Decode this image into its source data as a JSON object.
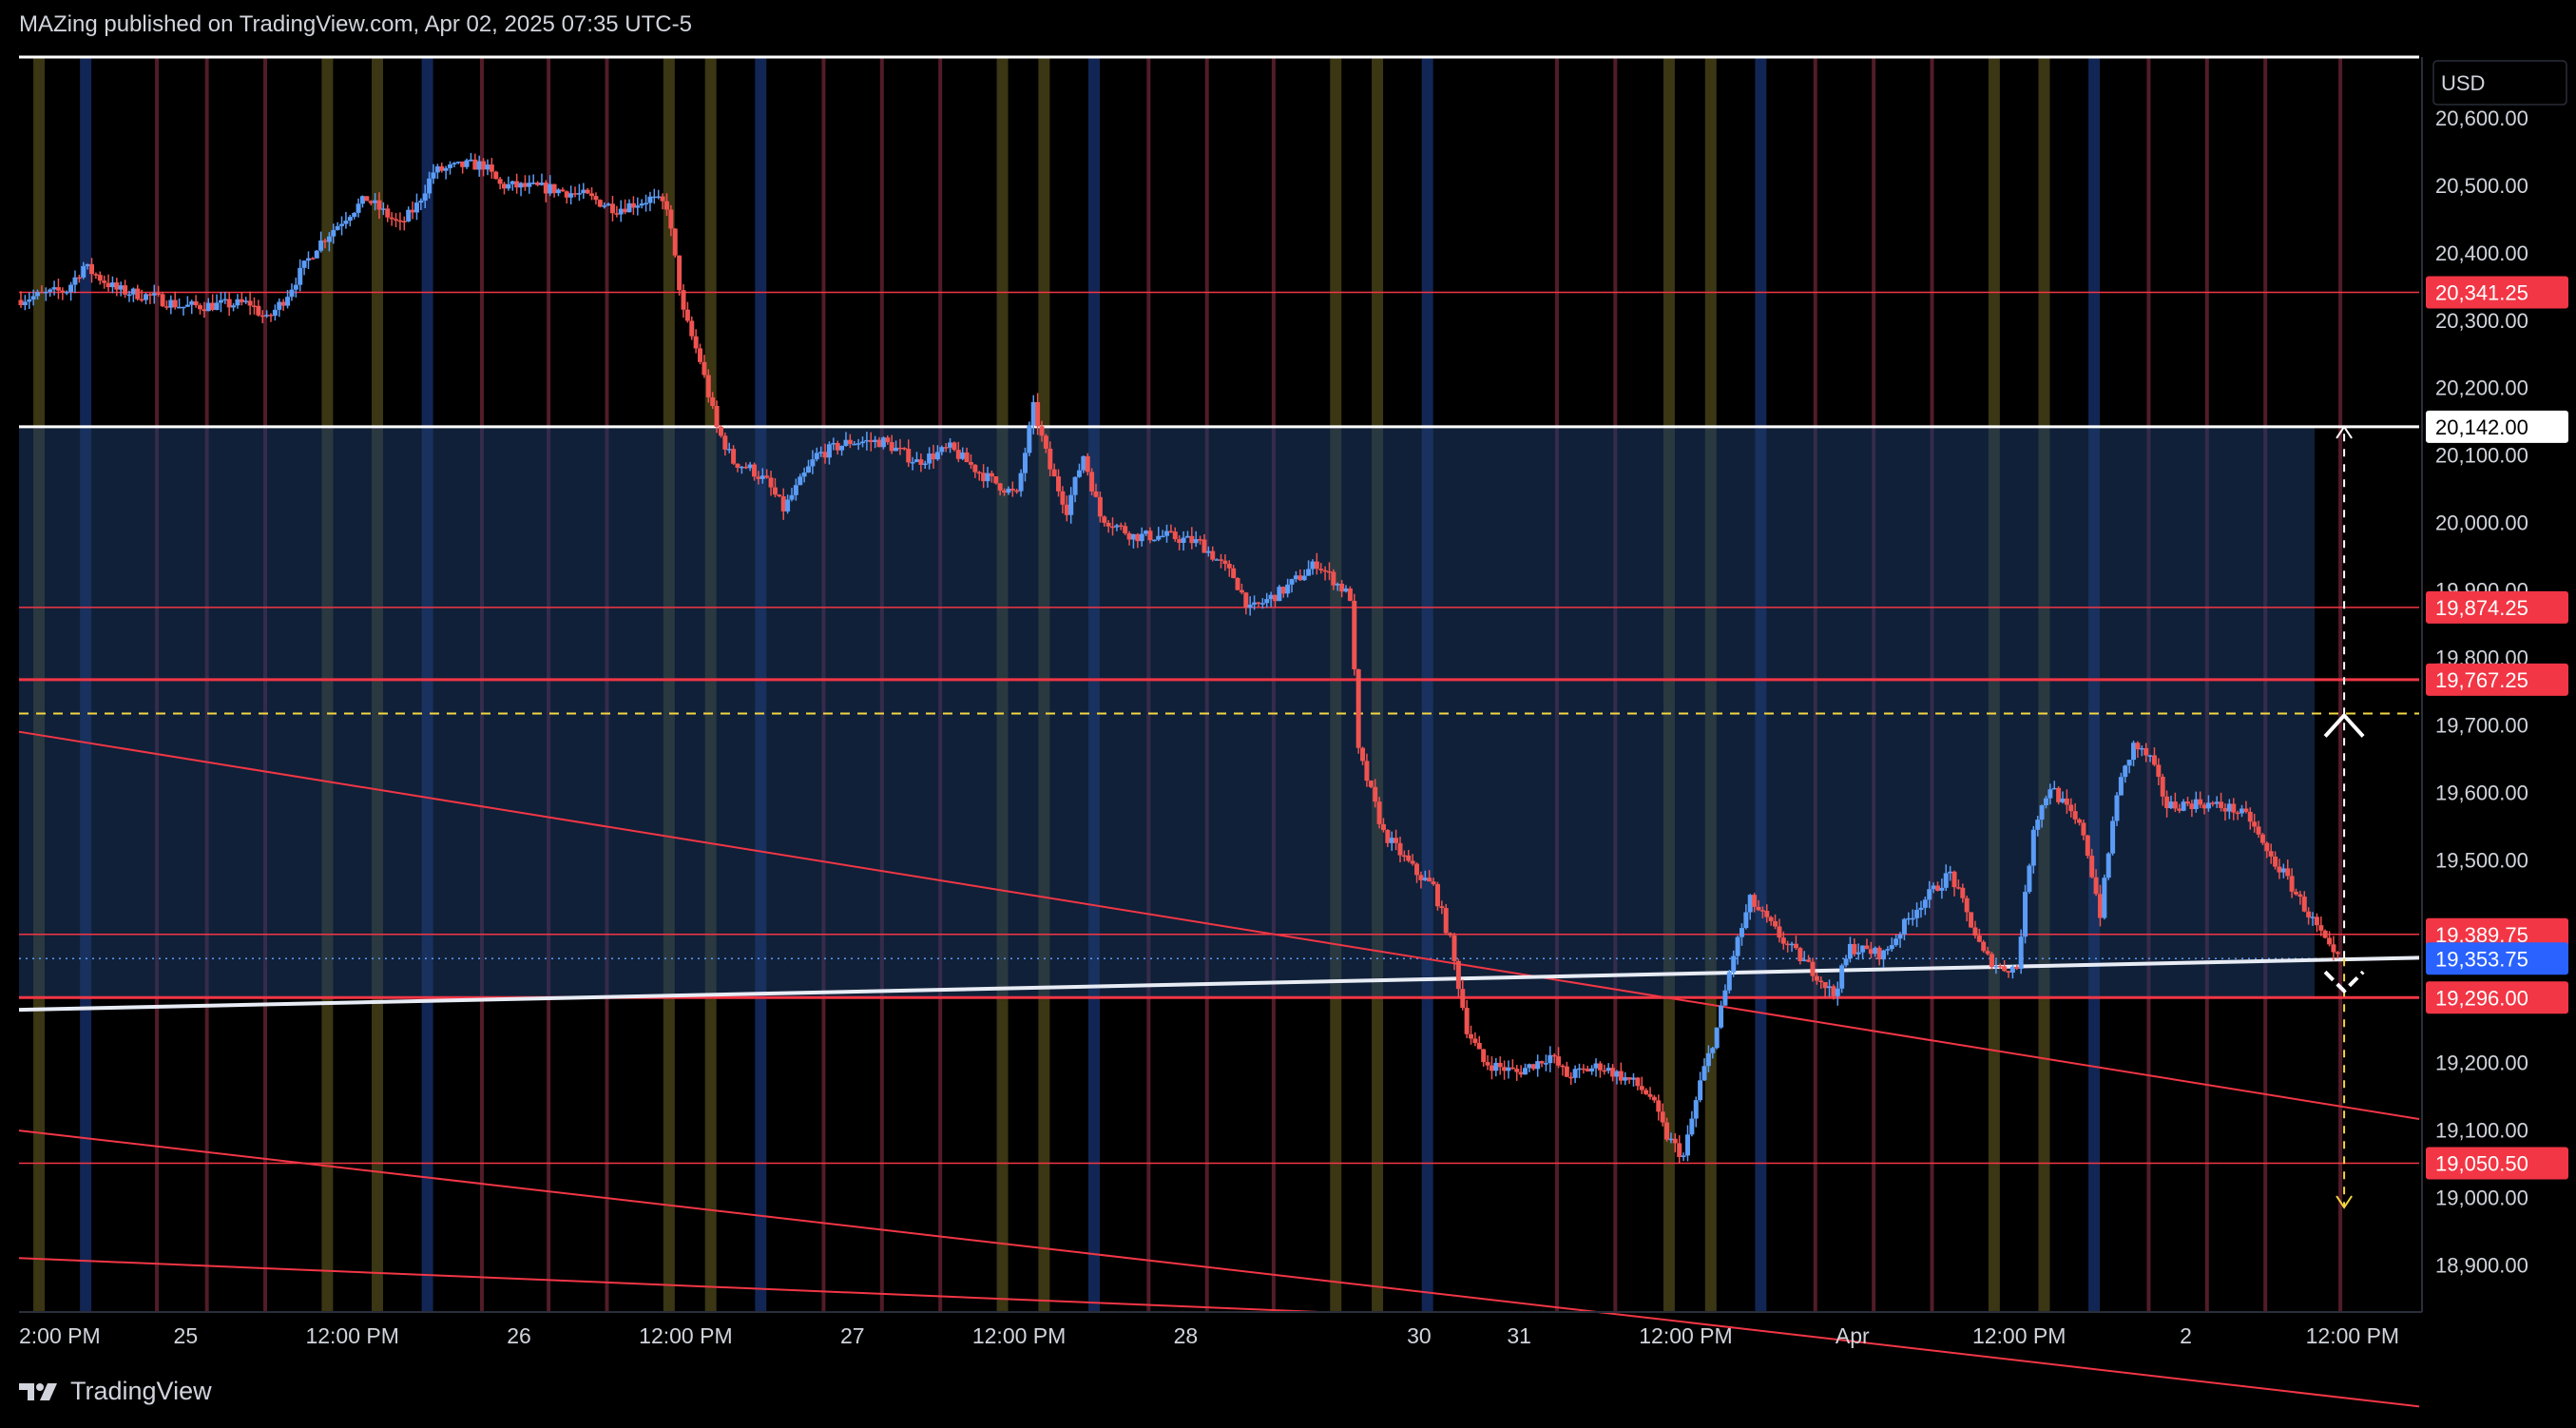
{
  "header": {
    "published_text": "MAZing published on TradingView.com, Apr 02, 2025 07:35 UTC-5"
  },
  "footer": {
    "brand": "TradingView"
  },
  "colors": {
    "background": "#000000",
    "up_candle": "#5b9cf6",
    "down_candle": "#ef5350",
    "level_line": "#f23645",
    "zone_fill": "#1e3a66",
    "white_line": "#ffffff",
    "yellow_dash": "#f5d742",
    "text": "#d1d4dc"
  },
  "chart_data": {
    "type": "candlestick",
    "currency": "USD",
    "yaxis_ticks": [
      20600,
      20500,
      20400,
      20300,
      20200,
      20100,
      20000,
      19900,
      19800,
      19700,
      19600,
      19500,
      19200,
      19100,
      19000,
      18900
    ],
    "yaxis_tick_labels": [
      "20,600.00",
      "20,500.00",
      "20,400.00",
      "20,300.00",
      "20,200.00",
      "20,100.00",
      "20,000.00",
      "19,900.00",
      "19,800.00",
      "19,700.00",
      "19,600.00",
      "19,500.00",
      "19,200.00",
      "19,100.00",
      "19,000.00",
      "18,900.00"
    ],
    "ylim": [
      18830,
      20690
    ],
    "xaxis_ticks": [
      {
        "label": "2:00 PM",
        "t": 0
      },
      {
        "label": "25",
        "t": 10
      },
      {
        "label": "12:00 PM",
        "t": 20
      },
      {
        "label": "26",
        "t": 30
      },
      {
        "label": "12:00 PM",
        "t": 40
      },
      {
        "label": "27",
        "t": 50
      },
      {
        "label": "12:00 PM",
        "t": 60
      },
      {
        "label": "28",
        "t": 70
      },
      {
        "label": "30",
        "t": 84
      },
      {
        "label": "31",
        "t": 90
      },
      {
        "label": "12:00 PM",
        "t": 100
      },
      {
        "label": "Apr",
        "t": 110
      },
      {
        "label": "12:00 PM",
        "t": 120
      },
      {
        "label": "2",
        "t": 130
      },
      {
        "label": "12:00 PM",
        "t": 140
      }
    ],
    "xlim": [
      0,
      144
    ],
    "horizontal_levels": [
      {
        "value": 20690,
        "label": "",
        "kind": "white"
      },
      {
        "value": 20341.25,
        "label": "20,341.25",
        "kind": "red"
      },
      {
        "value": 20142,
        "label": "20,142.00",
        "kind": "white"
      },
      {
        "value": 19874.25,
        "label": "19,874.25",
        "kind": "red"
      },
      {
        "value": 19767.25,
        "label": "19,767.25",
        "kind": "red"
      },
      {
        "value": 19389.75,
        "label": "19,389.75",
        "kind": "red"
      },
      {
        "value": 19296,
        "label": "19,296.00",
        "kind": "red"
      },
      {
        "value": 19050.5,
        "label": "19,050.50",
        "kind": "red"
      }
    ],
    "current_price": {
      "value": 19353.75,
      "label": "19,353.75"
    },
    "yellow_dashed_level": 19717,
    "zone": {
      "top": 20142,
      "bottom": 19296
    },
    "trend_lines": [
      {
        "kind": "red",
        "x1": 0,
        "y1": 19690,
        "x2": 144,
        "y2": 19116
      },
      {
        "kind": "red",
        "x1": 0,
        "y1": 19099,
        "x2": 144,
        "y2": 18690
      },
      {
        "kind": "red",
        "x1": 0,
        "y1": 18910,
        "x2": 78,
        "y2": 18830
      },
      {
        "kind": "white",
        "x1": 0,
        "y1": 19278,
        "x2": 144,
        "y2": 19355
      }
    ],
    "measure_arrow": {
      "x": 139.5,
      "from": 19353.75,
      "up_to": 20142,
      "down_to": 18985
    },
    "vertical_bands": [
      {
        "t": 1.2,
        "c": "y"
      },
      {
        "t": 4,
        "c": "b"
      },
      {
        "t": 8.5,
        "c": "r"
      },
      {
        "t": 11.5,
        "c": "r"
      },
      {
        "t": 15,
        "c": "r"
      },
      {
        "t": 18.5,
        "c": "y"
      },
      {
        "t": 21.5,
        "c": "y"
      },
      {
        "t": 24.5,
        "c": "b"
      },
      {
        "t": 28,
        "c": "r"
      },
      {
        "t": 32,
        "c": "r"
      },
      {
        "t": 35.5,
        "c": "r"
      },
      {
        "t": 39,
        "c": "y"
      },
      {
        "t": 41.5,
        "c": "y"
      },
      {
        "t": 44.5,
        "c": "b"
      },
      {
        "t": 48.5,
        "c": "r"
      },
      {
        "t": 52,
        "c": "r"
      },
      {
        "t": 55.5,
        "c": "r"
      },
      {
        "t": 59,
        "c": "y"
      },
      {
        "t": 61.5,
        "c": "y"
      },
      {
        "t": 64.5,
        "c": "b"
      },
      {
        "t": 68,
        "c": "r"
      },
      {
        "t": 71.5,
        "c": "r"
      },
      {
        "t": 75.5,
        "c": "r"
      },
      {
        "t": 79,
        "c": "y"
      },
      {
        "t": 81.5,
        "c": "y"
      },
      {
        "t": 84.5,
        "c": "b"
      },
      {
        "t": 92.5,
        "c": "r"
      },
      {
        "t": 96,
        "c": "r"
      },
      {
        "t": 99,
        "c": "y"
      },
      {
        "t": 101.5,
        "c": "y"
      },
      {
        "t": 104.5,
        "c": "b"
      },
      {
        "t": 108,
        "c": "r"
      },
      {
        "t": 111.5,
        "c": "r"
      },
      {
        "t": 115,
        "c": "r"
      },
      {
        "t": 118.5,
        "c": "y"
      },
      {
        "t": 121.5,
        "c": "y"
      },
      {
        "t": 124.5,
        "c": "b"
      },
      {
        "t": 128,
        "c": "r"
      },
      {
        "t": 131.5,
        "c": "r"
      },
      {
        "t": 135,
        "c": "r"
      },
      {
        "t": 139.5,
        "c": "r"
      }
    ],
    "price_path": [
      [
        0,
        20330
      ],
      [
        3,
        20345
      ],
      [
        4,
        20380
      ],
      [
        6,
        20345
      ],
      [
        8,
        20335
      ],
      [
        10,
        20320
      ],
      [
        14,
        20325
      ],
      [
        15,
        20300
      ],
      [
        16,
        20330
      ],
      [
        18,
        20410
      ],
      [
        20,
        20460
      ],
      [
        21,
        20480
      ],
      [
        23,
        20440
      ],
      [
        24,
        20470
      ],
      [
        25,
        20520
      ],
      [
        27,
        20530
      ],
      [
        28,
        20530
      ],
      [
        29,
        20500
      ],
      [
        32,
        20495
      ],
      [
        34,
        20485
      ],
      [
        36,
        20465
      ],
      [
        38,
        20480
      ],
      [
        39,
        20470
      ],
      [
        40,
        20310
      ],
      [
        41,
        20240
      ],
      [
        42,
        20140
      ],
      [
        43,
        20090
      ],
      [
        44,
        20080
      ],
      [
        45,
        20060
      ],
      [
        46,
        20020
      ],
      [
        48,
        20100
      ],
      [
        50,
        20120
      ],
      [
        52,
        20120
      ],
      [
        54,
        20090
      ],
      [
        56,
        20110
      ],
      [
        58,
        20070
      ],
      [
        60,
        20040
      ],
      [
        61,
        20170
      ],
      [
        62,
        20080
      ],
      [
        63,
        20020
      ],
      [
        64,
        20100
      ],
      [
        65,
        20010
      ],
      [
        67,
        19980
      ],
      [
        69,
        19980
      ],
      [
        71,
        19970
      ],
      [
        73,
        19920
      ],
      [
        74,
        19870
      ],
      [
        76,
        19900
      ],
      [
        78,
        19940
      ],
      [
        80,
        19890
      ],
      [
        80.5,
        19660
      ],
      [
        82,
        19540
      ],
      [
        84,
        19480
      ],
      [
        85,
        19460
      ],
      [
        86,
        19380
      ],
      [
        87,
        19250
      ],
      [
        88,
        19200
      ],
      [
        90,
        19185
      ],
      [
        92,
        19210
      ],
      [
        93,
        19180
      ],
      [
        95,
        19195
      ],
      [
        97,
        19170
      ],
      [
        98,
        19150
      ],
      [
        99,
        19090
      ],
      [
        100,
        19060
      ],
      [
        101,
        19170
      ],
      [
        102,
        19250
      ],
      [
        103,
        19360
      ],
      [
        104,
        19440
      ],
      [
        106,
        19380
      ],
      [
        108,
        19330
      ],
      [
        109,
        19300
      ],
      [
        110,
        19370
      ],
      [
        112,
        19360
      ],
      [
        114,
        19430
      ],
      [
        116,
        19480
      ],
      [
        117,
        19420
      ],
      [
        118,
        19360
      ],
      [
        119,
        19340
      ],
      [
        120,
        19340
      ],
      [
        121,
        19550
      ],
      [
        122,
        19610
      ],
      [
        124,
        19540
      ],
      [
        125,
        19420
      ],
      [
        126,
        19600
      ],
      [
        127,
        19670
      ],
      [
        128,
        19650
      ],
      [
        129,
        19580
      ],
      [
        131,
        19585
      ],
      [
        133,
        19575
      ],
      [
        134,
        19560
      ],
      [
        135,
        19510
      ],
      [
        136,
        19480
      ],
      [
        137,
        19440
      ],
      [
        138,
        19400
      ],
      [
        139,
        19355
      ]
    ]
  }
}
